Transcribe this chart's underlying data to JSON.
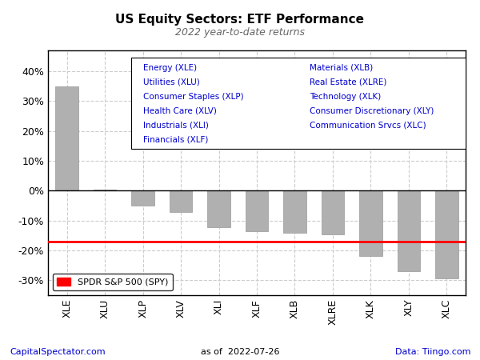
{
  "title": "US Equity Sectors: ETF Performance",
  "subtitle": "2022 year-to-date returns",
  "categories": [
    "XLE",
    "XLU",
    "XLP",
    "XLV",
    "XLI",
    "XLF",
    "XLB",
    "XLRE",
    "XLK",
    "XLY",
    "XLC"
  ],
  "values": [
    35.0,
    0.5,
    -5.0,
    -7.0,
    -12.2,
    -13.5,
    -14.0,
    -14.5,
    -22.0,
    -27.0,
    -29.5
  ],
  "bar_color": "#b0b0b0",
  "spy_value": -17.0,
  "spy_color": "#ff0000",
  "spy_label": "SPDR S&P 500 (SPY)",
  "ylim": [
    -35,
    47
  ],
  "yticks": [
    -30,
    -20,
    -10,
    0,
    10,
    20,
    30,
    40
  ],
  "ytick_labels": [
    "-30%",
    "-20%",
    "-10%",
    "0%",
    "10%",
    "20%",
    "30%",
    "40%"
  ],
  "footer_left": "CapitalSpectator.com",
  "footer_center": "as of  2022-07-26",
  "footer_right": "Data: Tiingo.com",
  "legend_col1": [
    "Energy (XLE)",
    "Utilities (XLU)",
    "Consumer Staples (XLP)",
    "Health Care (XLV)",
    "Industrials (XLI)",
    "Financials (XLF)"
  ],
  "legend_col2": [
    "Materials (XLB)",
    "Real Estate (XLRE)",
    "Technology (XLK)",
    "Consumer Discretionary (XLY)",
    "Communication Srvcs (XLC)"
  ],
  "legend_text_color": "#0000cc",
  "background_color": "#ffffff",
  "plot_bg_color": "#ffffff",
  "grid_color": "#cccccc",
  "title_color": "#000000",
  "axis_color": "#000000"
}
